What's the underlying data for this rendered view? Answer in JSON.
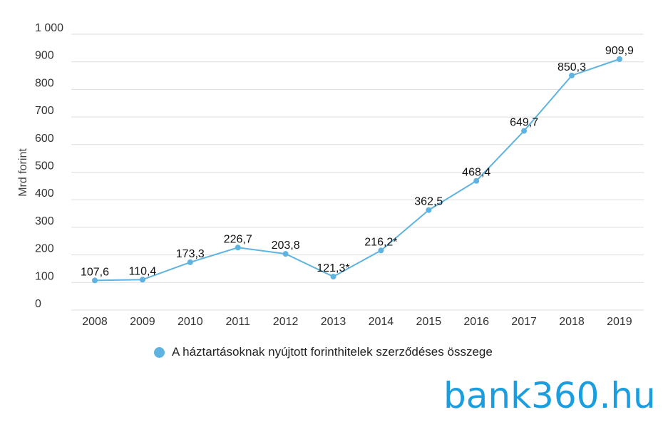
{
  "colors": {
    "series": "#5eb3e0",
    "grid": "#dddddd",
    "brand": "#1a9ee0"
  },
  "legend": {
    "label": "A háztartásoknak nyújtott forinthitelek szerződéses összege"
  },
  "brand": {
    "text": "bank360.hu"
  },
  "chart_data": {
    "type": "line",
    "title": "",
    "xlabel": "",
    "ylabel": "Mrd forint",
    "ylim": [
      0,
      1000
    ],
    "yticks": [
      0,
      100,
      200,
      300,
      400,
      500,
      600,
      700,
      800,
      900,
      1000
    ],
    "ytick_labels": [
      "0",
      "100",
      "200",
      "300",
      "400",
      "500",
      "600",
      "700",
      "800",
      "900",
      "1 000"
    ],
    "grid": true,
    "legend_position": "bottom",
    "categories": [
      "2008",
      "2009",
      "2010",
      "2011",
      "2012",
      "2013",
      "2014",
      "2015",
      "2016",
      "2017",
      "2018",
      "2019"
    ],
    "series": [
      {
        "name": "A háztartásoknak nyújtott forinthitelek szerződéses összege",
        "values": [
          107.6,
          110.4,
          173.3,
          226.7,
          203.8,
          121.3,
          216.2,
          362.5,
          468.4,
          649.7,
          850.3,
          909.9
        ],
        "labels": [
          "107,6",
          "110,4",
          "173,3",
          "226,7",
          "203,8",
          "121,3*",
          "216,2*",
          "362,5",
          "468,4",
          "649,7",
          "850,3",
          "909,9"
        ]
      }
    ]
  }
}
